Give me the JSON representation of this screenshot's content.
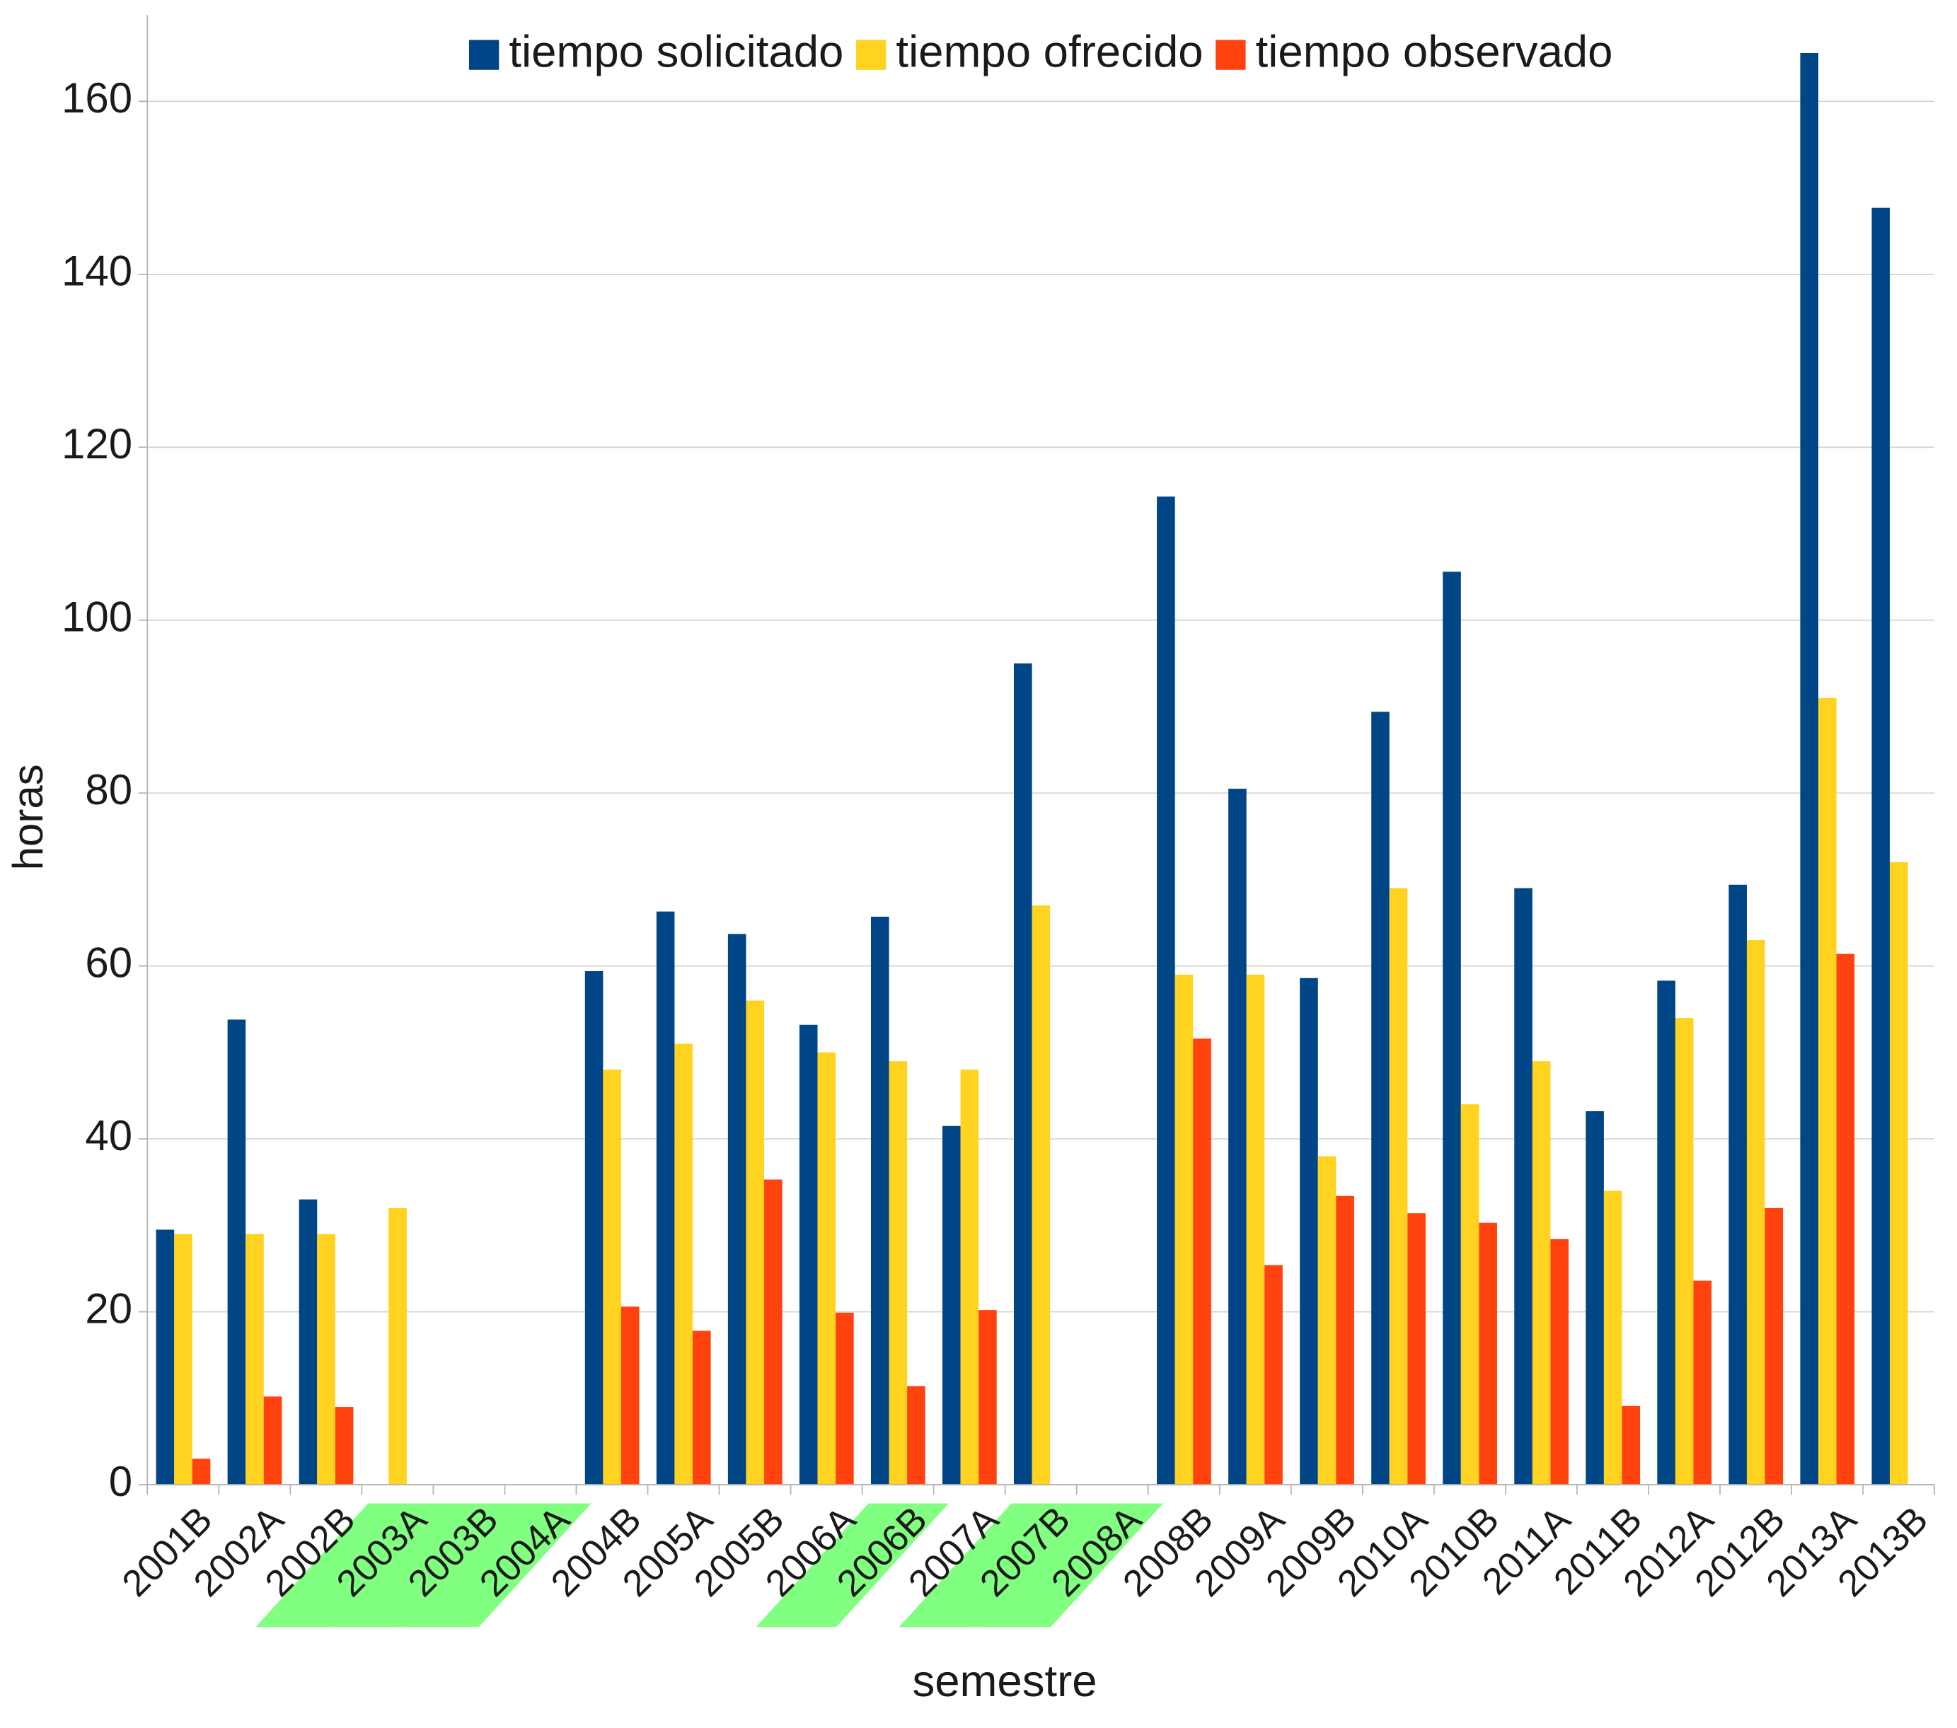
{
  "chart_data": {
    "type": "bar",
    "xlabel": "semestre",
    "ylabel": "horas",
    "categories": [
      "2001B",
      "2002A",
      "2002B",
      "2003A",
      "2003B",
      "2004A",
      "2004B",
      "2005A",
      "2005B",
      "2006A",
      "2006B",
      "2007A",
      "2007B",
      "2008A",
      "2008B",
      "2009A",
      "2009B",
      "2010A",
      "2010B",
      "2011A",
      "2011B",
      "2012A",
      "2012B",
      "2013A",
      "2013B"
    ],
    "highlight": [
      false,
      false,
      false,
      true,
      true,
      true,
      false,
      false,
      false,
      false,
      true,
      false,
      true,
      true,
      false,
      false,
      false,
      false,
      false,
      false,
      false,
      false,
      false,
      false,
      false
    ],
    "highlight_color": "#80ff80",
    "highlight_text_color": "#008a00",
    "series": [
      {
        "name": "tiempo solicitado",
        "color": "#004586",
        "values": [
          29.5,
          53.8,
          33,
          null,
          null,
          null,
          59.4,
          66.3,
          63.7,
          53.2,
          65.7,
          41.5,
          95,
          null,
          114.3,
          80.5,
          58.6,
          89.4,
          105.6,
          69,
          43.2,
          58.3,
          69.4,
          165.6,
          147.7
        ]
      },
      {
        "name": "tiempo ofrecido",
        "color": "#ffd320",
        "values": [
          29,
          29,
          29,
          32,
          null,
          null,
          48,
          51,
          56,
          50,
          49,
          48,
          67,
          null,
          59,
          59,
          38,
          69,
          44,
          49,
          34,
          54,
          63,
          91,
          72
        ]
      },
      {
        "name": "tiempo observado",
        "color": "#ff420e",
        "values": [
          3,
          10.2,
          9,
          null,
          null,
          null,
          20.6,
          17.8,
          35.3,
          19.9,
          11.4,
          20.2,
          null,
          null,
          51.6,
          25.4,
          33.4,
          31.4,
          30.3,
          28.4,
          9.1,
          23.6,
          32,
          61.4,
          null
        ]
      }
    ],
    "ylim": [
      0,
      170
    ],
    "yticks": [
      0,
      20,
      40,
      60,
      80,
      100,
      120,
      140,
      160
    ],
    "grid": true,
    "legend": "top"
  }
}
